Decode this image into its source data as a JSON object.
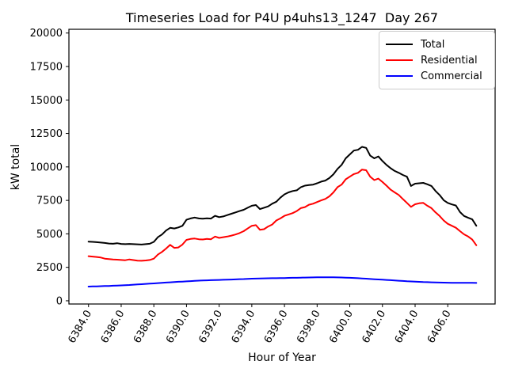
{
  "window": {
    "title": "Timeseries Load for P4U p4uhs13_1247  Day 267"
  },
  "chart_data": {
    "type": "line",
    "title": "Timeseries Load for P4U p4uhs13_1247  Day 267",
    "xlabel": "Hour of Year",
    "ylabel": "kW total",
    "grid": false,
    "legend_position": "upper right",
    "x_start": 6384.0,
    "x_step": 0.25,
    "xlim": [
      6382.8,
      6408.9
    ],
    "ylim": [
      -240,
      20280
    ],
    "x_ticks": [
      6384,
      6386,
      6388,
      6390,
      6392,
      6394,
      6396,
      6398,
      6400,
      6402,
      6404,
      6406
    ],
    "x_tick_labels": [
      "6384.0",
      "6386.0",
      "6388.0",
      "6390.0",
      "6392.0",
      "6394.0",
      "6396.0",
      "6398.0",
      "6400.0",
      "6402.0",
      "6404.0",
      "6406.0"
    ],
    "y_ticks": [
      0,
      2500,
      5000,
      7500,
      10000,
      12500,
      15000,
      17500,
      20000
    ],
    "y_tick_labels": [
      "0",
      "2500",
      "5000",
      "7500",
      "10000",
      "12500",
      "15000",
      "17500",
      "20000"
    ],
    "series": [
      {
        "name": "Total",
        "color": "#000000",
        "values": [
          4420,
          4400,
          4380,
          4350,
          4320,
          4280,
          4260,
          4300,
          4250,
          4230,
          4250,
          4230,
          4220,
          4200,
          4230,
          4260,
          4400,
          4750,
          4950,
          5250,
          5450,
          5400,
          5480,
          5600,
          6050,
          6150,
          6220,
          6150,
          6130,
          6160,
          6140,
          6350,
          6250,
          6300,
          6400,
          6500,
          6600,
          6700,
          6800,
          6950,
          7100,
          7150,
          6850,
          6950,
          7050,
          7250,
          7400,
          7700,
          7950,
          8100,
          8200,
          8250,
          8480,
          8600,
          8650,
          8680,
          8780,
          8900,
          8980,
          9170,
          9450,
          9855,
          10150,
          10640,
          10930,
          11220,
          11280,
          11500,
          11420,
          10840,
          10640,
          10780,
          10440,
          10150,
          9900,
          9700,
          9560,
          9400,
          9270,
          8580,
          8750,
          8780,
          8810,
          8700,
          8580,
          8200,
          7900,
          7510,
          7310,
          7200,
          7115,
          6625,
          6335,
          6200,
          6080,
          5600
        ]
      },
      {
        "name": "Residential",
        "color": "#ff0000",
        "values": [
          3330,
          3300,
          3270,
          3230,
          3150,
          3120,
          3090,
          3070,
          3050,
          3030,
          3090,
          3040,
          3000,
          2990,
          3010,
          3050,
          3150,
          3450,
          3650,
          3900,
          4180,
          3950,
          3980,
          4200,
          4550,
          4620,
          4650,
          4600,
          4580,
          4620,
          4600,
          4800,
          4700,
          4750,
          4800,
          4870,
          4950,
          5060,
          5200,
          5400,
          5600,
          5650,
          5300,
          5350,
          5550,
          5700,
          6000,
          6150,
          6350,
          6450,
          6550,
          6700,
          6920,
          7000,
          7175,
          7250,
          7375,
          7500,
          7610,
          7800,
          8100,
          8490,
          8680,
          9075,
          9270,
          9465,
          9560,
          9800,
          9755,
          9270,
          9015,
          9130,
          8875,
          8600,
          8300,
          8100,
          7900,
          7600,
          7310,
          7015,
          7210,
          7280,
          7310,
          7100,
          6920,
          6600,
          6335,
          6000,
          5750,
          5600,
          5455,
          5200,
          4965,
          4800,
          4575,
          4150
        ]
      },
      {
        "name": "Commercial",
        "color": "#0000ff",
        "values": [
          1060,
          1070,
          1080,
          1090,
          1100,
          1110,
          1125,
          1140,
          1150,
          1165,
          1180,
          1200,
          1220,
          1240,
          1260,
          1280,
          1300,
          1320,
          1340,
          1360,
          1380,
          1400,
          1420,
          1435,
          1450,
          1470,
          1490,
          1505,
          1520,
          1530,
          1540,
          1550,
          1560,
          1570,
          1580,
          1590,
          1600,
          1615,
          1625,
          1640,
          1650,
          1660,
          1670,
          1675,
          1680,
          1685,
          1690,
          1695,
          1700,
          1710,
          1715,
          1720,
          1730,
          1735,
          1740,
          1745,
          1750,
          1750,
          1750,
          1750,
          1750,
          1745,
          1740,
          1730,
          1720,
          1705,
          1690,
          1670,
          1650,
          1630,
          1610,
          1595,
          1580,
          1560,
          1540,
          1520,
          1500,
          1480,
          1460,
          1445,
          1430,
          1415,
          1400,
          1390,
          1380,
          1370,
          1360,
          1355,
          1350,
          1345,
          1342,
          1340,
          1340,
          1338,
          1336,
          1335
        ]
      }
    ]
  }
}
